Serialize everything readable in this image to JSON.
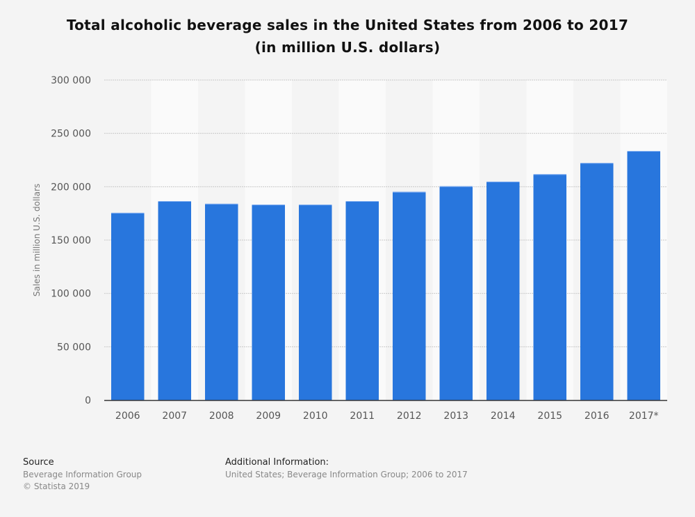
{
  "chart_data": {
    "type": "bar",
    "title": "Total alcoholic beverage sales in the United States from 2006 to 2017",
    "subtitle": "(in million U.S. dollars)",
    "ylabel": "Sales in million U.S. dollars",
    "xlabel": "",
    "categories": [
      "2006",
      "2007",
      "2008",
      "2009",
      "2010",
      "2011",
      "2012",
      "2013",
      "2014",
      "2015",
      "2016",
      "2017*"
    ],
    "values": [
      175500,
      186500,
      184000,
      183200,
      183200,
      186500,
      195200,
      200400,
      204800,
      211700,
      222200,
      233500
    ],
    "ylim": [
      0,
      300000
    ],
    "yticks": [
      0,
      50000,
      100000,
      150000,
      200000,
      250000,
      300000
    ],
    "ytick_labels": [
      "0",
      "50 000",
      "100 000",
      "150 000",
      "200 000",
      "250 000",
      "300 000"
    ],
    "grid": true,
    "bar_color": "#2876dd"
  },
  "footer": {
    "source_label": "Source",
    "source_text": "Beverage Information Group",
    "copyright": "© Statista 2019",
    "additional_label": "Additional Information:",
    "additional_text": "United States; Beverage Information Group; 2006 to 2017"
  }
}
